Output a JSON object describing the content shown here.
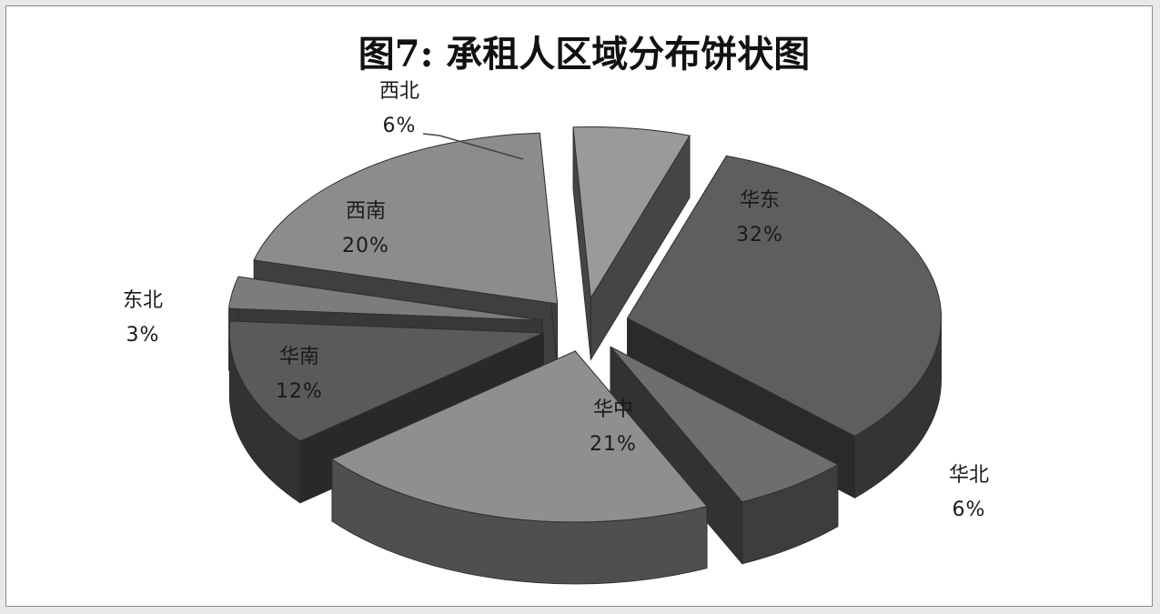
{
  "chart_data": {
    "type": "pie",
    "title": "图7:  承租人区域分布饼状图",
    "categories": [
      "华东",
      "华北",
      "华中",
      "华南",
      "东北",
      "西南",
      "西北"
    ],
    "values": [
      32,
      6,
      21,
      12,
      3,
      20,
      6
    ],
    "value_labels": [
      "32%",
      "6%",
      "21%",
      "12%",
      "3%",
      "20%",
      "6%"
    ],
    "exploded": true,
    "style": "3d",
    "legend": "none",
    "colors": {
      "华东": "#5e5e5e",
      "华北": "#6e6e6e",
      "华中": "#8f8f8f",
      "华南": "#5a5a5a",
      "东北": "#7c7c7c",
      "西南": "#8c8c8c",
      "西北": "#9a9a9a"
    }
  }
}
